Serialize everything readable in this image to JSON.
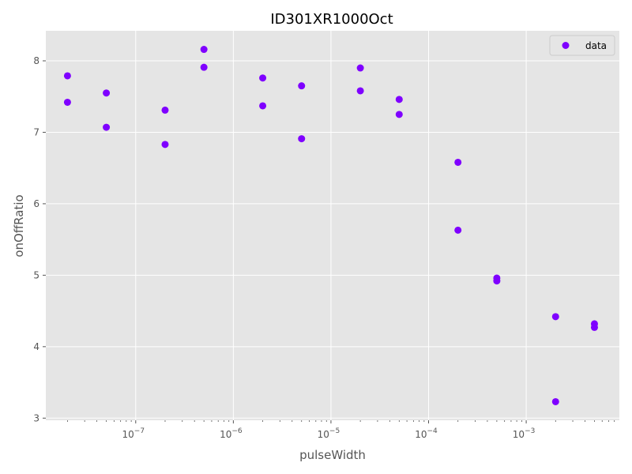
{
  "chart_data": {
    "type": "scatter",
    "title": "ID301XR1000Oct",
    "xlabel": "pulseWidth",
    "ylabel": "onOffRatio",
    "xscale": "log",
    "xlim": [
      1.2e-08,
      0.009
    ],
    "ylim": [
      2.97,
      8.42
    ],
    "grid": true,
    "legend_position": "top-right",
    "marker_color": "#7f00ff",
    "background_color": "#e5e5e5",
    "x_ticks": [
      {
        "value": 1e-07,
        "base": "10",
        "exp": "−7"
      },
      {
        "value": 1e-06,
        "base": "10",
        "exp": "−6"
      },
      {
        "value": 1e-05,
        "base": "10",
        "exp": "−5"
      },
      {
        "value": 0.0001,
        "base": "10",
        "exp": "−4"
      },
      {
        "value": 0.001,
        "base": "10",
        "exp": "−3"
      }
    ],
    "y_ticks": [
      "3",
      "4",
      "5",
      "6",
      "7",
      "8"
    ],
    "series": [
      {
        "name": "data",
        "points": [
          [
            2e-08,
            7.79
          ],
          [
            2e-08,
            7.42
          ],
          [
            5e-08,
            7.55
          ],
          [
            5e-08,
            7.07
          ],
          [
            2e-07,
            7.31
          ],
          [
            2e-07,
            6.83
          ],
          [
            5e-07,
            8.16
          ],
          [
            5e-07,
            7.91
          ],
          [
            2e-06,
            7.76
          ],
          [
            2e-06,
            7.37
          ],
          [
            5e-06,
            7.65
          ],
          [
            5e-06,
            6.91
          ],
          [
            2e-05,
            7.9
          ],
          [
            2e-05,
            7.58
          ],
          [
            5e-05,
            7.46
          ],
          [
            5e-05,
            7.25
          ],
          [
            0.0002,
            6.58
          ],
          [
            0.0002,
            5.63
          ],
          [
            0.0005,
            4.96
          ],
          [
            0.0005,
            4.92
          ],
          [
            0.002,
            4.42
          ],
          [
            0.002,
            3.23
          ],
          [
            0.005,
            4.32
          ],
          [
            0.005,
            4.27
          ]
        ]
      }
    ]
  }
}
